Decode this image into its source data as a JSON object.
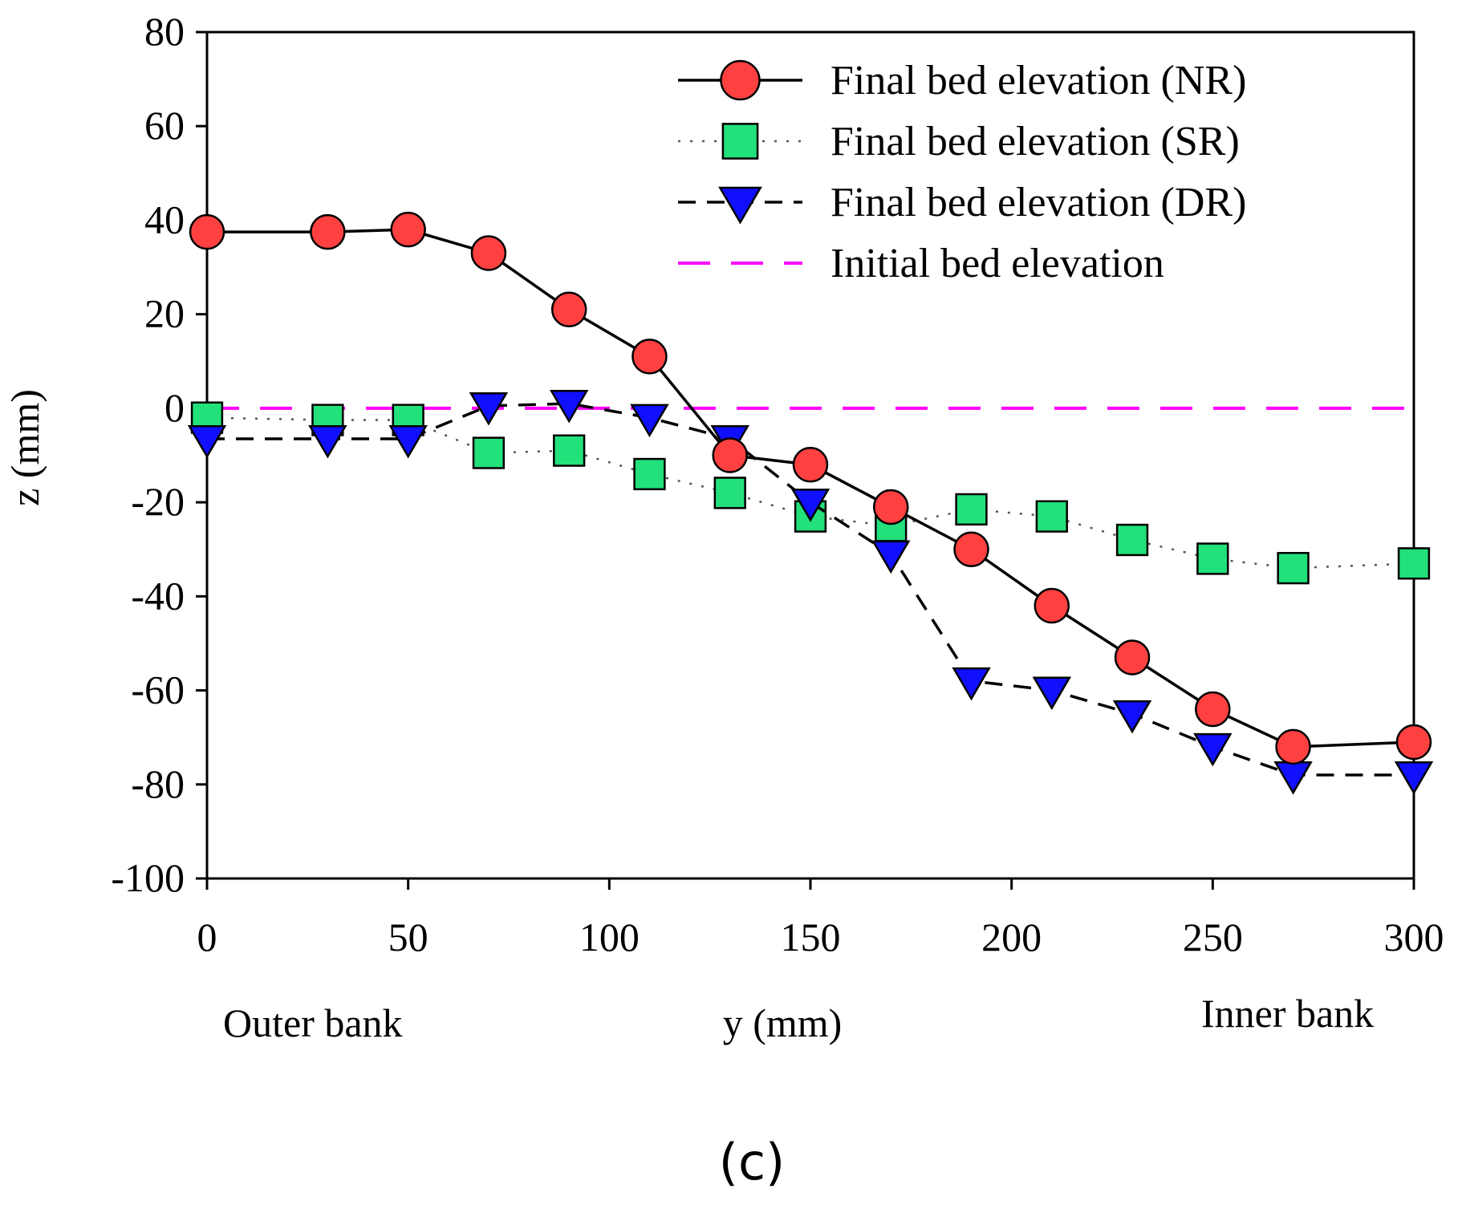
{
  "figure_label": "(c)",
  "chart_data": {
    "type": "line",
    "xlabel": "y (mm)",
    "ylabel": "z (mm)",
    "xlim": [
      0,
      300
    ],
    "ylim": [
      -100,
      80
    ],
    "xticks": [
      0,
      50,
      100,
      150,
      200,
      250,
      300
    ],
    "yticks": [
      80,
      60,
      40,
      20,
      0,
      -20,
      -40,
      -60,
      -80,
      -100
    ],
    "annotations": {
      "left": "Outer bank",
      "right": "Inner bank"
    },
    "legend_position": "top-right",
    "grid": false,
    "series": [
      {
        "name": "Final bed elevation (NR)",
        "marker": "circle",
        "line": "solid",
        "color": "#ff4040",
        "x": [
          0,
          30,
          50,
          70,
          90,
          110,
          130,
          150,
          170,
          190,
          210,
          230,
          250,
          270,
          300
        ],
        "y": [
          37.5,
          37.5,
          38,
          33,
          21,
          11,
          -10,
          -12,
          -21,
          -30,
          -42,
          -53,
          -64,
          -72,
          -71
        ]
      },
      {
        "name": "Final bed elevation (SR)",
        "marker": "square",
        "line": "dotted",
        "color": "#22e07a",
        "x": [
          0,
          30,
          50,
          70,
          90,
          110,
          130,
          150,
          170,
          190,
          210,
          230,
          250,
          270,
          300
        ],
        "y": [
          -2,
          -2.5,
          -2.5,
          -9.5,
          -9,
          -14,
          -18,
          -23,
          -25,
          -21.5,
          -23,
          -28,
          -32,
          -34,
          -33
        ]
      },
      {
        "name": "Final bed elevation (DR)",
        "marker": "triangle-down",
        "line": "dashed",
        "color": "#1010ff",
        "x": [
          0,
          30,
          50,
          70,
          90,
          110,
          130,
          150,
          170,
          190,
          210,
          230,
          250,
          270,
          300
        ],
        "y": [
          -6.5,
          -6.5,
          -6.5,
          0.5,
          1,
          -2,
          -6.5,
          -20,
          -31,
          -58,
          -60,
          -65,
          -72,
          -78,
          -78
        ]
      },
      {
        "name": "Initial bed elevation",
        "marker": "none",
        "line": "long-dash",
        "color": "#ff00ff",
        "x": [
          0,
          300
        ],
        "y": [
          0,
          0
        ]
      }
    ]
  }
}
